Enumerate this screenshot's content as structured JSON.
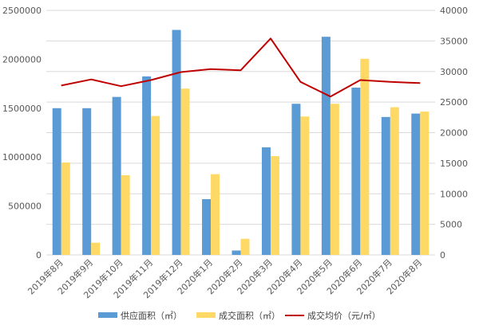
{
  "chart_data": {
    "type": "bar",
    "categories": [
      "2019年8月",
      "2019年9月",
      "2019年10月",
      "2019年11月",
      "2019年12月",
      "2020年1月",
      "2020年2月",
      "2020年3月",
      "2020年4月",
      "2020年5月",
      "2020年6月",
      "2020年7月",
      "2020年8月"
    ],
    "series": [
      {
        "name": "供应面积（㎡）",
        "type": "bar",
        "axis": "left",
        "color": "#5B9BD5",
        "values": [
          1500000,
          1500000,
          1615000,
          1825000,
          2300000,
          570000,
          45000,
          1100000,
          1545000,
          2230000,
          1710000,
          1410000,
          1445000
        ]
      },
      {
        "name": "成交面积（㎡）",
        "type": "bar",
        "axis": "left",
        "color": "#FFD966",
        "values": [
          945000,
          125000,
          815000,
          1420000,
          1700000,
          825000,
          165000,
          1010000,
          1415000,
          1545000,
          2005000,
          1510000,
          1465000
        ]
      },
      {
        "name": "成交均价（元/㎡）",
        "type": "line",
        "axis": "right",
        "color": "#C00000",
        "values": [
          27700,
          28700,
          27600,
          28600,
          29900,
          30400,
          30200,
          35400,
          28300,
          25900,
          28600,
          28300,
          28100
        ]
      }
    ],
    "y_left": {
      "min": 0,
      "max": 2500000,
      "ticks": [
        "0",
        "500000",
        "1000000",
        "1500000",
        "2000000",
        "2500000"
      ]
    },
    "y_right": {
      "min": 0,
      "max": 40000,
      "ticks": [
        "0",
        "5000",
        "10000",
        "15000",
        "20000",
        "25000",
        "30000",
        "35000",
        "40000"
      ]
    },
    "grid": true,
    "legend_position": "bottom"
  }
}
